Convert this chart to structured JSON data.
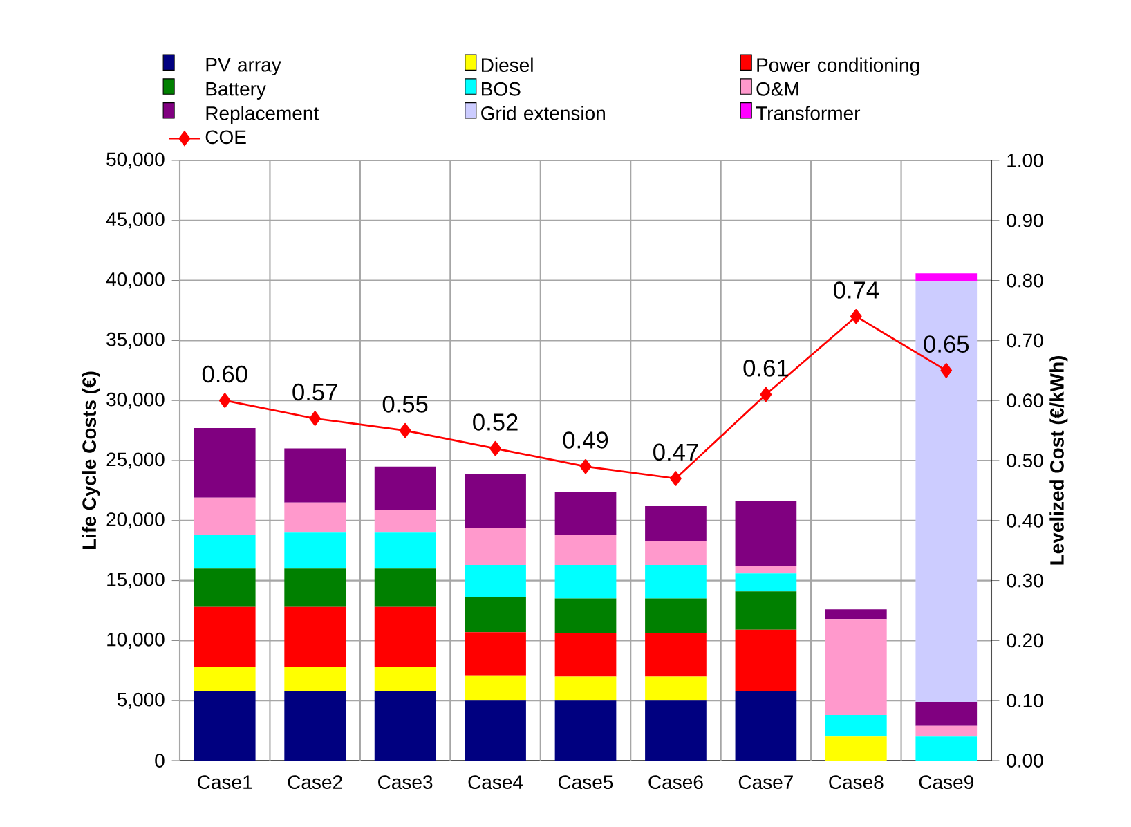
{
  "chart_data": {
    "type": "bar",
    "stacked": true,
    "categories": [
      "Case1",
      "Case2",
      "Case3",
      "Case4",
      "Case5",
      "Case6",
      "Case7",
      "Case8",
      "Case9"
    ],
    "series": [
      {
        "name": "PV array",
        "color": "#000080",
        "values": [
          5800,
          5800,
          5800,
          5000,
          5000,
          5000,
          5800,
          0,
          0
        ]
      },
      {
        "name": "Diesel",
        "color": "#ffff00",
        "values": [
          2000,
          2000,
          2000,
          2100,
          2000,
          2000,
          0,
          2000,
          0
        ]
      },
      {
        "name": "Power conditioning",
        "color": "#ff0000",
        "values": [
          5000,
          5000,
          5000,
          3600,
          3600,
          3600,
          5100,
          0,
          0
        ]
      },
      {
        "name": "Battery",
        "color": "#008000",
        "values": [
          3200,
          3200,
          3200,
          2900,
          2900,
          2900,
          3200,
          0,
          0
        ]
      },
      {
        "name": "BOS",
        "color": "#00ffff",
        "values": [
          2800,
          3000,
          3000,
          2700,
          2800,
          2800,
          1500,
          1800,
          2000
        ]
      },
      {
        "name": "O&M",
        "color": "#ff99cc",
        "values": [
          3100,
          2500,
          1900,
          3100,
          2500,
          2000,
          600,
          8000,
          900
        ]
      },
      {
        "name": "Replacement",
        "color": "#800080",
        "values": [
          5800,
          4500,
          3600,
          4500,
          3600,
          2900,
          5400,
          800,
          2000
        ]
      },
      {
        "name": "Grid extension",
        "color": "#ccccff",
        "values": [
          0,
          0,
          0,
          0,
          0,
          0,
          0,
          0,
          35000
        ]
      },
      {
        "name": "Transformer",
        "color": "#ff00ff",
        "values": [
          0,
          0,
          0,
          0,
          0,
          0,
          0,
          0,
          700
        ]
      },
      {
        "name": "COE",
        "color": "#ff0000",
        "type": "line",
        "axis": "y2",
        "marker": "diamond",
        "values": [
          0.6,
          0.57,
          0.55,
          0.52,
          0.49,
          0.47,
          0.61,
          0.74,
          0.65
        ],
        "value_labels": [
          "0.60",
          "0.57",
          "0.55",
          "0.52",
          "0.49",
          "0.47",
          "0.61",
          "0.74",
          "0.65"
        ]
      }
    ],
    "ylabel": "Life Cycle Costs (€)",
    "y2label": "Levelized Cost (€/kWh)",
    "ylim": [
      0,
      50000
    ],
    "yticks": [
      0,
      {
        "value": 5000,
        "label": "5,000"
      },
      {
        "value": 10000,
        "label": "10,000"
      },
      {
        "value": 15000,
        "label": "15,000"
      },
      {
        "value": 20000,
        "label": "20,000"
      },
      {
        "value": 25000,
        "label": "25,000"
      },
      {
        "value": 30000,
        "label": "30,000"
      },
      {
        "value": 35000,
        "label": "35,000"
      },
      {
        "value": 40000,
        "label": "40,000"
      },
      {
        "value": 45000,
        "label": "45,000"
      },
      {
        "value": 50000,
        "label": "50,000"
      }
    ],
    "y2lim": [
      0,
      1
    ],
    "y2ticks": [
      {
        "value": 0,
        "label": "0.00"
      },
      {
        "value": 0.1,
        "label": "0.10"
      },
      {
        "value": 0.2,
        "label": "0.20"
      },
      {
        "value": 0.3,
        "label": "0.30"
      },
      {
        "value": 0.4,
        "label": "0.40"
      },
      {
        "value": 0.5,
        "label": "0.50"
      },
      {
        "value": 0.6,
        "label": "0.60"
      },
      {
        "value": 0.7,
        "label": "0.70"
      },
      {
        "value": 0.8,
        "label": "0.80"
      },
      {
        "value": 0.9,
        "label": "0.90"
      },
      {
        "value": 1.0,
        "label": "1.00"
      }
    ],
    "grid": true,
    "legend": "top"
  }
}
